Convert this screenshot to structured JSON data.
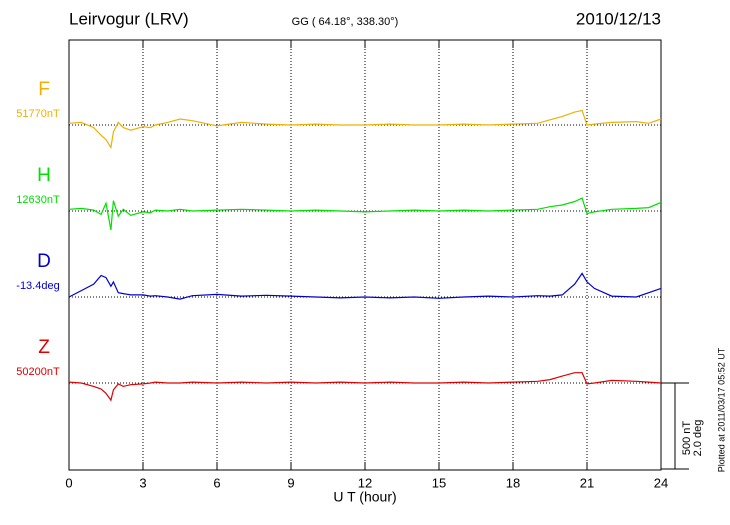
{
  "chart_data": {
    "type": "line",
    "title": "Leirvogur (LRV)",
    "subtitle": "GG ( 64.18°, 338.30°)",
    "date": "2010/12/13",
    "xlabel": "U T (hour)",
    "note": "Plotted at 2011/03/17 05:52 UT",
    "xlim": [
      0,
      24
    ],
    "xticks": [
      0,
      3,
      6,
      9,
      12,
      15,
      18,
      21,
      24
    ],
    "grid": true,
    "scale_bar": [
      {
        "value": 500,
        "label": "500 nT"
      },
      {
        "value": 2.0,
        "label": "2.0 deg"
      }
    ],
    "x": [
      0,
      0.5,
      1,
      1.3,
      1.5,
      1.7,
      1.8,
      2,
      2.2,
      2.5,
      3,
      3.3,
      3.5,
      4,
      4.5,
      5,
      6,
      7,
      8,
      9,
      10,
      11,
      12,
      13,
      14,
      15,
      16,
      17,
      18,
      19,
      19.5,
      20,
      20.5,
      20.8,
      21,
      21.3,
      22,
      23,
      23.5,
      24
    ],
    "series": [
      {
        "name": "F",
        "baseline": "51770nT",
        "color": "#f0b000",
        "scale": 0,
        "values": [
          10,
          15,
          -15,
          -60,
          -85,
          -130,
          -40,
          15,
          -15,
          -30,
          -10,
          -15,
          0,
          15,
          35,
          25,
          -5,
          15,
          5,
          0,
          5,
          0,
          0,
          5,
          0,
          0,
          5,
          0,
          5,
          10,
          30,
          50,
          75,
          85,
          0,
          5,
          15,
          20,
          10,
          35
        ]
      },
      {
        "name": "H",
        "baseline": "12630nT",
        "color": "#00e000",
        "scale": 0,
        "values": [
          10,
          15,
          5,
          -20,
          45,
          -110,
          60,
          -30,
          10,
          -25,
          -5,
          -10,
          5,
          0,
          10,
          0,
          5,
          10,
          5,
          0,
          5,
          0,
          -5,
          0,
          5,
          0,
          5,
          0,
          5,
          10,
          25,
          35,
          55,
          75,
          -15,
          -5,
          10,
          15,
          20,
          50
        ]
      },
      {
        "name": "D",
        "baseline": "-13.4deg",
        "color": "#0000d0",
        "scale": 1,
        "values": [
          0,
          0.15,
          0.3,
          0.5,
          0.45,
          0.25,
          0.35,
          0.1,
          0.08,
          0.05,
          0.05,
          0.02,
          0.03,
          0,
          -0.05,
          0.03,
          0.06,
          0.02,
          0.04,
          0.02,
          0,
          -0.02,
          0,
          -0.02,
          0,
          -0.03,
          0,
          0.02,
          0,
          0.03,
          0.02,
          0.05,
          0.3,
          0.55,
          0.35,
          0.2,
          0.02,
          0,
          0.1,
          0.2
        ]
      },
      {
        "name": "Z",
        "baseline": "50200nT",
        "color": "#e00000",
        "scale": 0,
        "values": [
          5,
          0,
          -20,
          -35,
          -60,
          -100,
          -40,
          -5,
          -20,
          -10,
          -5,
          0,
          5,
          0,
          0,
          5,
          0,
          5,
          0,
          5,
          0,
          5,
          0,
          5,
          0,
          0,
          5,
          0,
          5,
          10,
          20,
          40,
          60,
          60,
          -5,
          0,
          15,
          10,
          5,
          0
        ]
      }
    ]
  }
}
